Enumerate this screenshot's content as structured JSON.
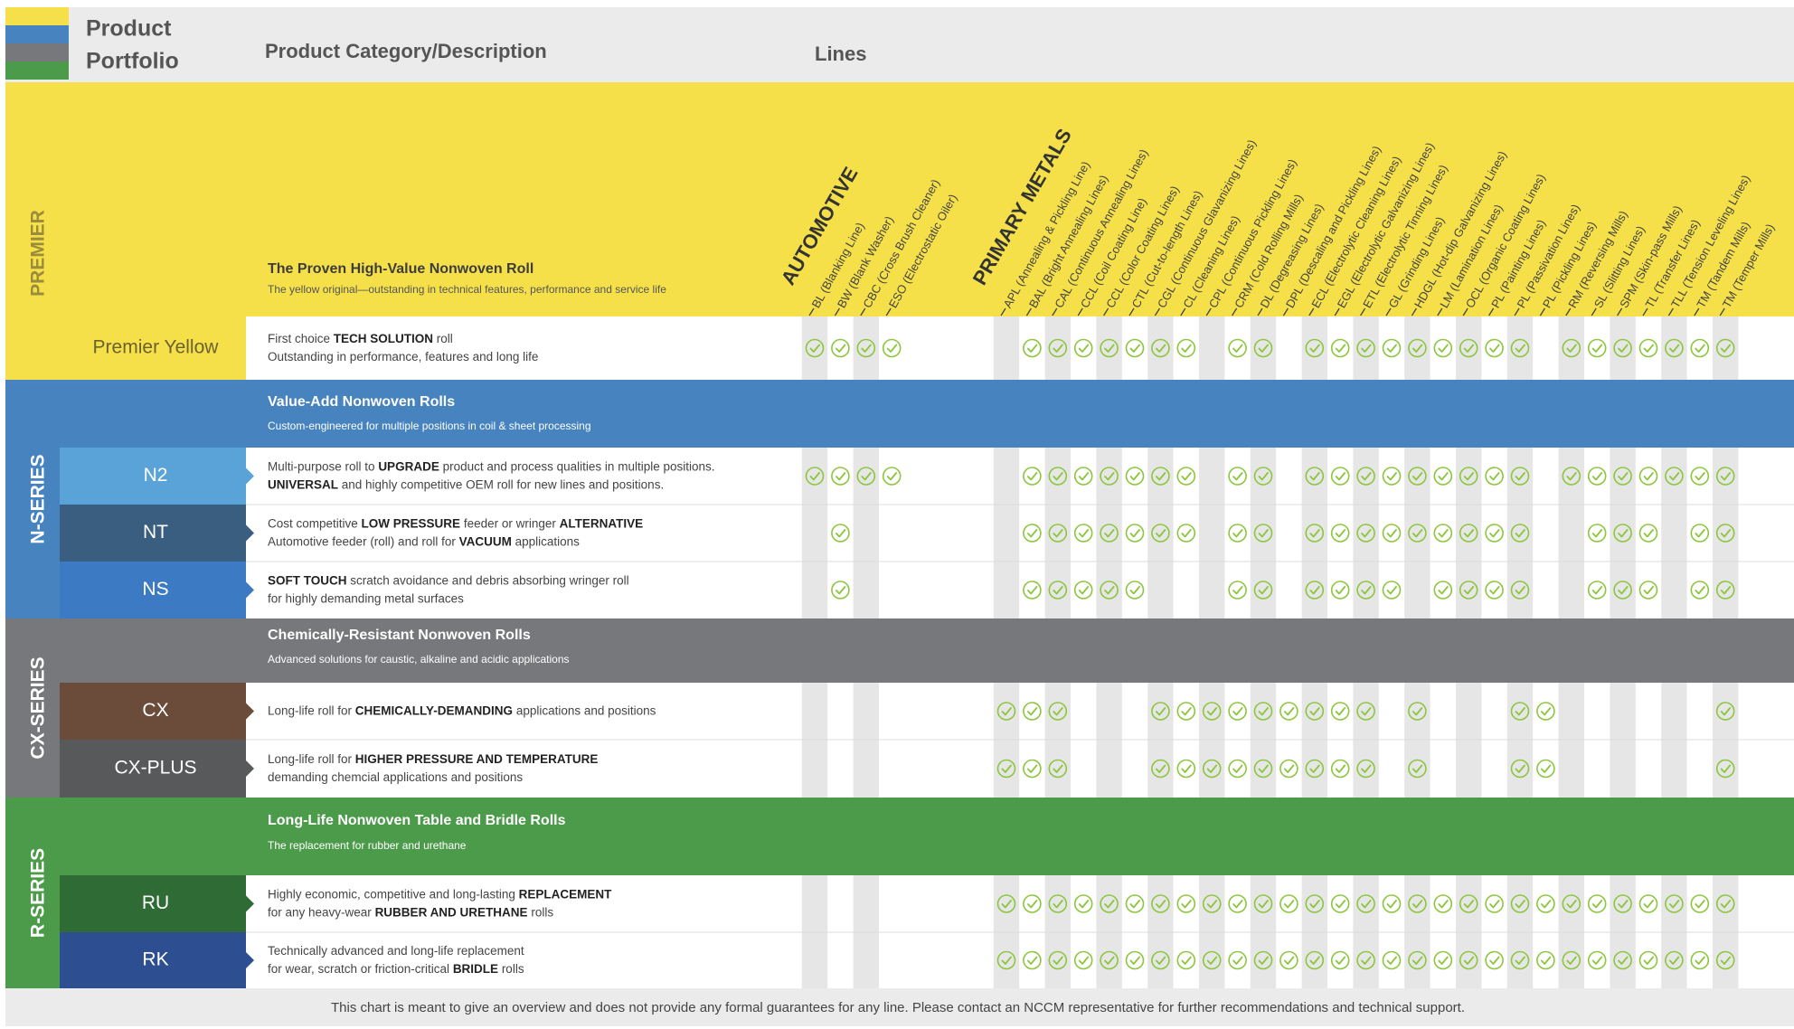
{
  "header": {
    "portfolio_title": [
      "Product",
      "Portfolio"
    ],
    "category_title": "Product Category/Description",
    "lines_title": "Lines"
  },
  "line_groups": [
    {
      "name": "AUTOMOTIVE",
      "lines": [
        "BL (Blanking Line)",
        "BW (Blank Washer)",
        "CBC (Cross Brush Cleaner)",
        "ESO (Electrostatic Oiler)"
      ]
    },
    {
      "name": "PRIMARY METALS",
      "lines": [
        "APL (Annealing & Pickling Line)",
        "BAL (Bright Annealing Lines)",
        "CAL (Continuous Annealing Lines)",
        "CCL (Coil Coating Line)",
        "CCL (Color Coating Lines)",
        "CTL (Cut-to-length Lines)",
        "CGL (Continuous Glavanizing Lines)",
        "CL (Cleaning Lines)",
        "CPL (Continuous Pickling Lines)",
        "CRM (Cold Rolling Mills)",
        "DL (Degreasing Lines)",
        "DPL (Descaling and Pickling Lines)",
        "ECL (Electrolytic Cleaning Lines)",
        "EGL (Electrolytic Galvanizing Lines)",
        "ETL (Electrolytic Tinning Lines)",
        "GL (Grinding Lines)",
        "HDGL (Hot-dip Galvanizing Lines)",
        "LM (Lamination Lines)",
        "OCL (Organic Coating Lines)",
        "PL (Painting Lines)",
        "PL (Passivation Lines)",
        "PL (Pickling Lines)",
        "RM (Reversing Mills)",
        "SL (Slitting Lines)",
        "SPM (Skin-pass Mills)",
        "TL (Transfer Lines)",
        "TLL (Tension Leveling Lines)",
        "TM (Tandem Mills)",
        "TM (Temper Mills)"
      ]
    }
  ],
  "sections": [
    {
      "label": "PREMIER",
      "color": "#f5e04a",
      "title": "The Proven High-Value Nonwoven Roll",
      "subtitle": "The yellow original—outstanding in technical features, performance and service life",
      "rows": [
        {
          "name": "Premier Yellow",
          "color": "#f5e04a",
          "description": [
            [
              "First choice ",
              {
                "b": "TECH SOLUTION"
              },
              " roll"
            ],
            [
              "Outstanding in performance, features and long life"
            ]
          ],
          "checks": [
            [
              1,
              1,
              1,
              1
            ],
            [
              0,
              1,
              1,
              1,
              1,
              1,
              1,
              1,
              0,
              1,
              1,
              0,
              1,
              1,
              1,
              1,
              1,
              1,
              1,
              1,
              1,
              0,
              1,
              1,
              1,
              1,
              1,
              1,
              1
            ]
          ]
        }
      ]
    },
    {
      "label": "N-SERIES",
      "color": "#4683bf",
      "title": "Value-Add Nonwoven Rolls",
      "subtitle": "Custom-engineered for multiple positions in coil & sheet processing",
      "rows": [
        {
          "name": "N2",
          "color": "#5aa3d8",
          "description": [
            [
              "Multi-purpose roll to ",
              {
                "b": "UPGRADE"
              },
              " product and process qualities in multiple positions."
            ],
            [
              {
                "b": "UNIVERSAL"
              },
              " and highly competitive OEM roll for new lines and positions."
            ]
          ],
          "checks": [
            [
              1,
              1,
              1,
              1
            ],
            [
              0,
              1,
              1,
              1,
              1,
              1,
              1,
              1,
              0,
              1,
              1,
              0,
              1,
              1,
              1,
              1,
              1,
              1,
              1,
              1,
              1,
              0,
              1,
              1,
              1,
              1,
              1,
              1,
              1
            ]
          ]
        },
        {
          "name": "NT",
          "color": "#3a5e7f",
          "description": [
            [
              "Cost competitive ",
              {
                "b": "LOW PRESSURE"
              },
              " feeder or wringer ",
              {
                "b": "ALTERNATIVE"
              }
            ],
            [
              "Automotive feeder (roll) and roll for ",
              {
                "b": "VACUUM"
              },
              " applications"
            ]
          ],
          "checks": [
            [
              0,
              1,
              0,
              0
            ],
            [
              0,
              1,
              1,
              1,
              1,
              1,
              1,
              1,
              0,
              1,
              1,
              0,
              1,
              1,
              1,
              1,
              1,
              1,
              1,
              1,
              1,
              0,
              0,
              1,
              1,
              1,
              0,
              1,
              1
            ]
          ]
        },
        {
          "name": "NS",
          "color": "#3c7bc3",
          "description": [
            [
              {
                "b": "SOFT TOUCH"
              },
              " scratch avoidance and debris absorbing wringer roll"
            ],
            [
              "for highly demanding metal surfaces"
            ]
          ],
          "checks": [
            [
              0,
              1,
              0,
              0
            ],
            [
              0,
              1,
              1,
              1,
              1,
              1,
              0,
              0,
              0,
              1,
              1,
              0,
              1,
              1,
              1,
              1,
              0,
              1,
              1,
              1,
              1,
              0,
              0,
              1,
              1,
              1,
              0,
              1,
              1
            ]
          ]
        }
      ]
    },
    {
      "label": "CX-SERIES",
      "color": "#77787b",
      "title": "Chemically-Resistant Nonwoven Rolls",
      "subtitle": "Advanced solutions for caustic, alkaline and acidic applications",
      "rows": [
        {
          "name": "CX",
          "color": "#6b4c3b",
          "description": [
            [
              "Long-life roll for ",
              {
                "b": "CHEMICALLY-DEMANDING"
              },
              " applications and positions"
            ]
          ],
          "checks": [
            [
              0,
              0,
              0,
              0
            ],
            [
              1,
              1,
              1,
              0,
              0,
              0,
              1,
              1,
              1,
              1,
              1,
              1,
              1,
              1,
              1,
              0,
              1,
              0,
              0,
              0,
              1,
              1,
              0,
              0,
              0,
              0,
              0,
              0,
              1
            ]
          ]
        },
        {
          "name": "CX-PLUS",
          "color": "#58595b",
          "description": [
            [
              "Long-life roll for ",
              {
                "b": "HIGHER PRESSURE AND TEMPERATURE"
              }
            ],
            [
              "demanding chemcial applications and positions"
            ]
          ],
          "checks": [
            [
              0,
              0,
              0,
              0
            ],
            [
              1,
              1,
              1,
              0,
              0,
              0,
              1,
              1,
              1,
              1,
              1,
              1,
              1,
              1,
              1,
              0,
              1,
              0,
              0,
              0,
              1,
              1,
              0,
              0,
              0,
              0,
              0,
              0,
              1
            ]
          ]
        }
      ]
    },
    {
      "label": "R-SERIES",
      "color": "#4c9b4a",
      "title": "Long-Life Nonwoven Table and Bridle Rolls",
      "subtitle": "The replacement for rubber and urethane",
      "rows": [
        {
          "name": "RU",
          "color": "#2e6b35",
          "description": [
            [
              "Highly economic, competitive and long-lasting ",
              {
                "b": "REPLACEMENT"
              }
            ],
            [
              "for any heavy-wear ",
              {
                "b": "RUBBER AND URETHANE"
              },
              " rolls"
            ]
          ],
          "checks": [
            [
              0,
              0,
              0,
              0
            ],
            [
              1,
              1,
              1,
              1,
              1,
              1,
              1,
              1,
              1,
              1,
              1,
              1,
              1,
              1,
              1,
              1,
              1,
              1,
              1,
              1,
              1,
              1,
              1,
              1,
              1,
              1,
              1,
              1,
              1
            ]
          ]
        },
        {
          "name": "RK",
          "color": "#2d4f91",
          "description": [
            [
              "Technically advanced and long-life replacement"
            ],
            [
              "for wear, scratch or friction-critical ",
              {
                "b": "BRIDLE"
              },
              " rolls"
            ]
          ],
          "checks": [
            [
              0,
              0,
              0,
              0
            ],
            [
              1,
              1,
              1,
              1,
              1,
              1,
              1,
              1,
              1,
              1,
              1,
              1,
              1,
              1,
              1,
              1,
              1,
              1,
              1,
              1,
              1,
              1,
              1,
              1,
              1,
              1,
              1,
              1,
              1
            ]
          ]
        }
      ]
    }
  ],
  "footer": "This chart is meant to give an overview and does not provide any formal guarantees for any line. Please contact an NCCM representative for further recommendations and technical support."
}
